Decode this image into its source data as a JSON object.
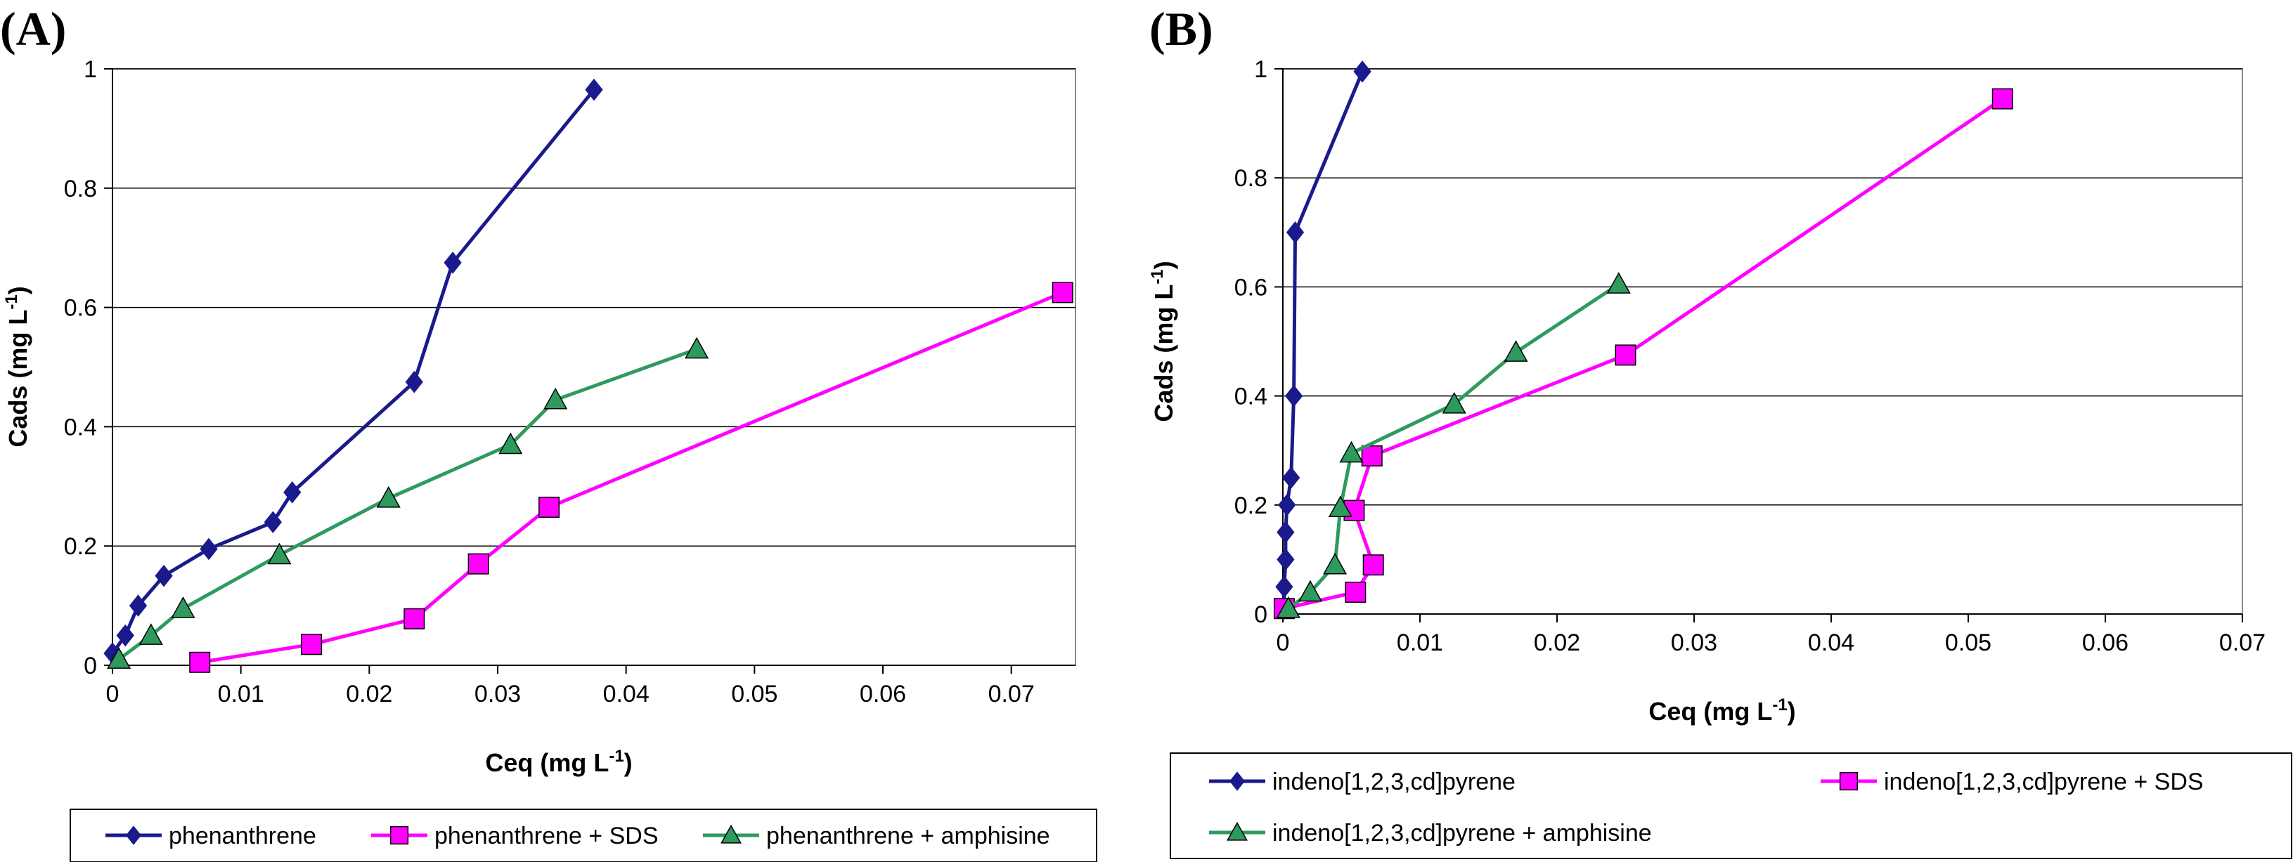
{
  "chart_data": [
    {
      "panel": "(A)",
      "type": "line",
      "xlabel": "Ceq (mg L",
      "ylabel": "Cads (mg L",
      "label_superscript": "-1",
      "label_suffix": ")",
      "xlim": [
        0,
        0.075
      ],
      "ylim": [
        0,
        1
      ],
      "xticks": [
        0,
        0.01,
        0.02,
        0.03,
        0.04,
        0.05,
        0.06,
        0.07
      ],
      "xtick_labels": [
        "0",
        "0.01",
        "0.02",
        "0.03",
        "0.04",
        "0.05",
        "0.06",
        "0.07"
      ],
      "yticks": [
        0,
        0.2,
        0.4,
        0.6,
        0.8,
        1
      ],
      "ytick_labels": [
        "0",
        "0.2",
        "0.4",
        "0.6",
        "0.8",
        "1"
      ],
      "grid": "horizontal",
      "legend_position": "bottom",
      "series": [
        {
          "name": "phenanthrene",
          "color": "#1a1a8c",
          "marker": "diamond",
          "points": [
            [
              0,
              0.02
            ],
            [
              0.001,
              0.05
            ],
            [
              0.002,
              0.1
            ],
            [
              0.004,
              0.15
            ],
            [
              0.0075,
              0.195
            ],
            [
              0.0125,
              0.24
            ],
            [
              0.014,
              0.29
            ],
            [
              0.0235,
              0.475
            ],
            [
              0.0265,
              0.675
            ],
            [
              0.0375,
              0.965
            ]
          ]
        },
        {
          "name": "phenanthrene + SDS",
          "color": "#ff00ff",
          "marker": "square",
          "points": [
            [
              0.0068,
              0.005
            ],
            [
              0.0155,
              0.035
            ],
            [
              0.0235,
              0.078
            ],
            [
              0.0285,
              0.17
            ],
            [
              0.034,
              0.265
            ],
            [
              0.074,
              0.625
            ]
          ]
        },
        {
          "name": "phenanthrene + amphisine",
          "color": "#2e9a5e",
          "marker": "triangle",
          "points": [
            [
              0.0005,
              0.01
            ],
            [
              0.003,
              0.05
            ],
            [
              0.0055,
              0.095
            ],
            [
              0.013,
              0.185
            ],
            [
              0.0215,
              0.28
            ],
            [
              0.031,
              0.37
            ],
            [
              0.0345,
              0.445
            ],
            [
              0.0455,
              0.53
            ]
          ]
        }
      ]
    },
    {
      "panel": "(B)",
      "type": "line",
      "xlabel": "Ceq (mg L",
      "ylabel": "Cads (mg L",
      "label_superscript": "-1",
      "label_suffix": ")",
      "xlim": [
        0,
        0.07
      ],
      "ylim": [
        0,
        1
      ],
      "xticks": [
        0,
        0.01,
        0.02,
        0.03,
        0.04,
        0.05,
        0.06,
        0.07
      ],
      "xtick_labels": [
        "0",
        "0.01",
        "0.02",
        "0.03",
        "0.04",
        "0.05",
        "0.06",
        "0.07"
      ],
      "yticks": [
        0,
        0.2,
        0.4,
        0.6,
        0.8,
        1
      ],
      "ytick_labels": [
        "0",
        "0.2",
        "0.4",
        "0.6",
        "0.8",
        "1"
      ],
      "grid": "horizontal",
      "legend_position": "bottom",
      "series": [
        {
          "name": "indeno[1,2,3,cd]pyrene",
          "color": "#1a1a8c",
          "marker": "diamond",
          "points": [
            [
              0.0001,
              0.01
            ],
            [
              0.0001,
              0.05
            ],
            [
              0.0002,
              0.1
            ],
            [
              0.0002,
              0.15
            ],
            [
              0.0003,
              0.2
            ],
            [
              0.0006,
              0.25
            ],
            [
              0.0008,
              0.4
            ],
            [
              0.0009,
              0.7
            ],
            [
              0.0058,
              0.995
            ]
          ]
        },
        {
          "name": "indeno[1,2,3,cd]pyrene + SDS",
          "color": "#ff00ff",
          "marker": "square",
          "points": [
            [
              0.0001,
              0.01
            ],
            [
              0.0053,
              0.04
            ],
            [
              0.0066,
              0.09
            ],
            [
              0.0052,
              0.19
            ],
            [
              0.0065,
              0.29
            ],
            [
              0.025,
              0.475
            ],
            [
              0.0525,
              0.945
            ]
          ]
        },
        {
          "name": "indeno[1,2,3,cd]pyrene + amphisine",
          "color": "#2e9a5e",
          "marker": "triangle",
          "points": [
            [
              0.0004,
              0.01
            ],
            [
              0.002,
              0.04
            ],
            [
              0.0038,
              0.09
            ],
            [
              0.0042,
              0.195
            ],
            [
              0.005,
              0.295
            ],
            [
              0.0125,
              0.385
            ],
            [
              0.017,
              0.48
            ],
            [
              0.0245,
              0.605
            ]
          ]
        }
      ]
    }
  ]
}
